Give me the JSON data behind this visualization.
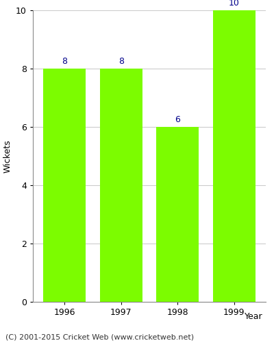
{
  "years": [
    "1996",
    "1997",
    "1998",
    "1999"
  ],
  "values": [
    8,
    8,
    6,
    10
  ],
  "bar_color": "#7CFC00",
  "bar_edge_color": "#7CFC00",
  "xlabel": "Year",
  "ylabel": "Wickets",
  "ylim": [
    0,
    10
  ],
  "yticks": [
    0,
    2,
    4,
    6,
    8,
    10
  ],
  "label_color": "#00008B",
  "label_fontsize": 9,
  "axis_label_fontsize": 9,
  "tick_fontsize": 9,
  "footer_text": "(C) 2001-2015 Cricket Web (www.cricketweb.net)",
  "footer_fontsize": 8,
  "grid_color": "#cccccc",
  "background_color": "#ffffff",
  "spine_color": "#888888"
}
